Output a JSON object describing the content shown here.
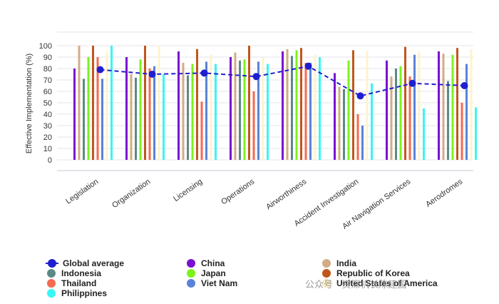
{
  "chart_data": {
    "type": "bar",
    "ylabel": "Effective Implementation (%)",
    "ylim": [
      0,
      100
    ],
    "yticks": [
      0,
      10,
      20,
      30,
      40,
      50,
      60,
      70,
      80,
      90,
      100
    ],
    "grid": true,
    "legend_position": "bottom",
    "categories": [
      "Legislation",
      "Organization",
      "Licensing",
      "Operations",
      "Airworthiness",
      "Accident Investigation",
      "Air Navigation Services",
      "Aerodromes"
    ],
    "series": [
      {
        "name": "China",
        "color": "#7b0fd1",
        "values": [
          80,
          90,
          95,
          90,
          95,
          76,
          87,
          95
        ]
      },
      {
        "name": "India",
        "color": "#d2ac86",
        "values": [
          100,
          75,
          85,
          94,
          97,
          64,
          73,
          93
        ]
      },
      {
        "name": "Indonesia",
        "color": "#5b8a86",
        "values": [
          71,
          72,
          74,
          87,
          91,
          62,
          80,
          69
        ]
      },
      {
        "name": "Japan",
        "color": "#7cf21d",
        "values": [
          90,
          88,
          84,
          88,
          96,
          87,
          82,
          92
        ]
      },
      {
        "name": "Republic of Korea",
        "color": "#c1561b",
        "values": [
          100,
          100,
          97,
          100,
          98,
          96,
          99,
          98
        ]
      },
      {
        "name": "Thailand",
        "color": "#f56a50",
        "values": [
          90,
          80,
          51,
          60,
          85,
          40,
          73,
          50
        ]
      },
      {
        "name": "Viet Nam",
        "color": "#5a83d8",
        "values": [
          71,
          82,
          86,
          86,
          85,
          30,
          92,
          84
        ]
      },
      {
        "name": "United States of America",
        "color": "#fff2cc",
        "values": [
          95,
          100,
          92,
          90,
          92,
          95,
          95,
          97
        ]
      },
      {
        "name": "Philippines",
        "color": "#37f6f6",
        "values": [
          100,
          75,
          84,
          84,
          90,
          67,
          45,
          46
        ]
      }
    ],
    "global_average": {
      "name": "Global average",
      "color": "#1f1fd0",
      "values": [
        79,
        75,
        76,
        73,
        82,
        56,
        67,
        65
      ]
    }
  },
  "watermark": "公众号 · 资深机长陈建国"
}
